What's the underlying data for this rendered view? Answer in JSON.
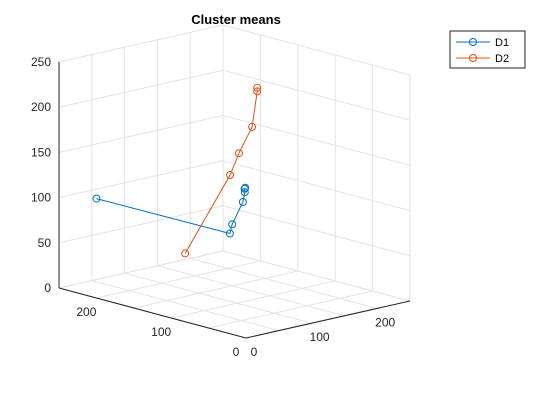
{
  "chart_data": {
    "type": "line",
    "title": "Cluster means",
    "xlabel": "",
    "ylabel": "",
    "zlabel": "",
    "xlim": [
      0,
      250
    ],
    "ylim": [
      0,
      250
    ],
    "zlim": [
      0,
      250
    ],
    "x_ticks": [
      "0",
      "100",
      "200"
    ],
    "y_ticks": [
      "0",
      "100",
      "200"
    ],
    "z_ticks": [
      "0",
      "50",
      "100",
      "150",
      "200",
      "250"
    ],
    "grid": true,
    "legend": {
      "placement": "top-right"
    },
    "series": [
      {
        "name": "D1",
        "color": "#0072bd",
        "marker": "circle",
        "points": [
          {
            "x": 0,
            "y": 200,
            "z": 110
          },
          {
            "x": 142,
            "y": 146,
            "z": 60
          },
          {
            "x": 150,
            "y": 150,
            "z": 68
          },
          {
            "x": 172,
            "y": 155,
            "z": 88
          },
          {
            "x": 176,
            "y": 156,
            "z": 98
          },
          {
            "x": 178,
            "y": 158,
            "z": 101
          },
          {
            "x": 179,
            "y": 158,
            "z": 102
          }
        ]
      },
      {
        "name": "D2",
        "color": "#d95319",
        "marker": "circle",
        "points": [
          {
            "x": 10,
            "y": 90,
            "z": 72
          },
          {
            "x": 10,
            "y": 30,
            "z": 172
          },
          {
            "x": 12,
            "y": 20,
            "z": 198
          },
          {
            "x": 15,
            "y": 5,
            "z": 230
          },
          {
            "x": 17,
            "y": 0,
            "z": 270
          },
          {
            "x": 17,
            "y": 0,
            "z": 274
          }
        ]
      }
    ]
  }
}
